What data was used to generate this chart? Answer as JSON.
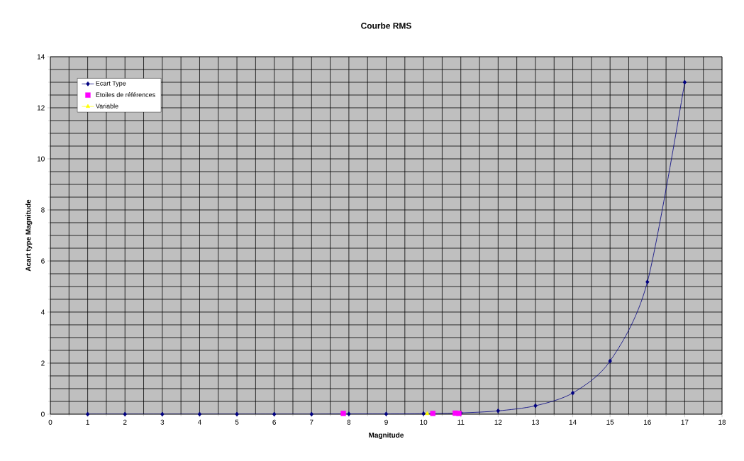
{
  "chart_data": {
    "type": "line",
    "title": "Courbe RMS",
    "xlabel": "Magnitude",
    "ylabel": "Acart type Magnitude",
    "xlim": [
      0,
      18
    ],
    "xticks": [
      0,
      1,
      2,
      3,
      4,
      5,
      6,
      7,
      8,
      9,
      10,
      11,
      12,
      13,
      14,
      15,
      16,
      17,
      18
    ],
    "ylim": [
      0,
      14
    ],
    "yticks": [
      0,
      2,
      4,
      6,
      8,
      10,
      12,
      14
    ],
    "grid": true,
    "legend": "top left",
    "series": [
      {
        "name": "Ecart Type",
        "color": "#000080",
        "marker": "diamond",
        "x": [
          1,
          2,
          3,
          4,
          5,
          6,
          7,
          8,
          9,
          10,
          11,
          12,
          13,
          14,
          15,
          16,
          17
        ],
        "values": [
          0,
          0,
          0,
          0,
          0,
          0,
          0,
          0.01,
          0.01,
          0.02,
          0.05,
          0.13,
          0.33,
          0.83,
          2.08,
          5.18,
          13.0
        ]
      },
      {
        "name": "Etoiles de références",
        "type": "scatter",
        "color": "#ff00ff",
        "marker": "square",
        "x": [
          7.85,
          10.25,
          10.85,
          10.95
        ],
        "values": [
          0.03,
          0.03,
          0.04,
          0.03
        ]
      },
      {
        "name": "Variable",
        "color": "#ffff00",
        "marker": "triangle",
        "x": [
          10.1
        ],
        "values": [
          0.02
        ]
      }
    ]
  }
}
